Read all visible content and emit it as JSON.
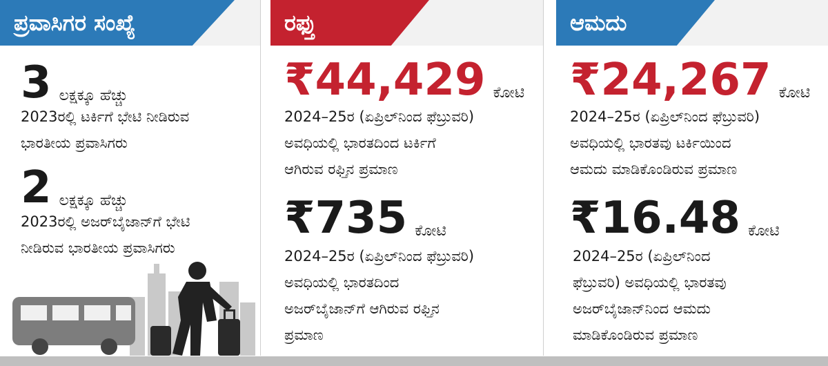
{
  "panels": [
    {
      "title": "ಪ್ರವಾಸಿಗರ ಸಂಖ್ಯೆ",
      "color": "#2c7ab8",
      "stats": [
        {
          "value": "3",
          "unit": "ಲಕ್ಷಕ್ಕೂ ಹೆಚ್ಚು",
          "desc": [
            "2023ರಲ್ಲಿ ಟರ್ಕಿಗೆ ಭೇಟಿ ನೀಡಿರುವ",
            "ಭಾರತೀಯ ಪ್ರವಾಸಿಗರು"
          ]
        },
        {
          "value": "2",
          "unit": "ಲಕ್ಷಕ್ಕೂ ಹೆಚ್ಚು",
          "desc": [
            "2023ರಲ್ಲಿ ಅಜರ್‌ಬೈಜಾನ್‌ಗೆ ಭೇಟಿ",
            "ನೀಡಿರುವ ಭಾರತೀಯ ಪ್ರವಾಸಿಗರು"
          ]
        }
      ]
    },
    {
      "title": "ರಫ್ತು",
      "color": "#c4222f",
      "stats": [
        {
          "value": "₹44,429",
          "unit": "ಕೋಟಿ",
          "desc": [
            "2024–25ರ (ಏಪ್ರಿಲ್‌ನಿಂದ ಫೆಬ್ರುವರಿ)",
            "ಅವಧಿಯಲ್ಲಿ ಭಾರತದಿಂದ ಟರ್ಕಿಗೆ",
            "ಆಗಿರುವ ರಫ್ತಿನ ಪ್ರಮಾಣ"
          ]
        },
        {
          "value": "₹735",
          "unit": "ಕೋಟಿ",
          "desc": [
            "2024–25ರ (ಏಪ್ರಿಲ್‌ನಿಂದ ಫೆಬ್ರುವರಿ)",
            "ಅವಧಿಯಲ್ಲಿ ಭಾರತದಿಂದ",
            "ಅಜರ್‌ಬೈಜಾನ್‌ಗೆ ಆಗಿರುವ ರಫ್ತಿನ",
            "ಪ್ರಮಾಣ"
          ]
        }
      ]
    },
    {
      "title": "ಆಮದು",
      "color": "#2c7ab8",
      "stats": [
        {
          "value": "₹24,267",
          "unit": "ಕೋಟಿ",
          "desc": [
            "2024–25ರ (ಏಪ್ರಿಲ್‌ನಿಂದ ಫೆಬ್ರುವರಿ)",
            "ಅವಧಿಯಲ್ಲಿ ಭಾರತವು ಟರ್ಕಿಯಿಂದ",
            "ಆಮದು ಮಾಡಿಕೊಂಡಿರುವ ಪ್ರಮಾಣ"
          ]
        },
        {
          "value": "₹16.48",
          "unit": "ಕೋಟಿ",
          "desc": [
            "2024–25ರ (ಏಪ್ರಿಲ್‌ನಿಂದ",
            "ಫೆಬ್ರುವರಿ) ಅವಧಿಯಲ್ಲಿ ಭಾರತವು",
            "ಅಜರ್‌ಬೈಜಾನ್‌ನಿಂದ ಆಮದು",
            "ಮಾಡಿಕೊಂಡಿರುವ ಪ್ರಮಾಣ"
          ]
        }
      ]
    }
  ],
  "icons": [
    "traveler-illustration-icon",
    "bus-icon",
    "city-skyline-icon",
    "luggage-icon"
  ]
}
